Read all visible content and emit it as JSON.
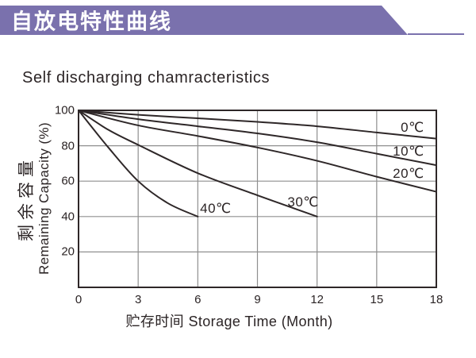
{
  "header": {
    "title": "自放电特性曲线",
    "accent_color": "#7a71ad"
  },
  "page": {
    "subtitle": "Self discharging chamracteristics"
  },
  "chart_data": {
    "type": "line",
    "title": "Self discharging chamracteristics",
    "xlabel": "贮存时间 Storage Time (Month)",
    "ylabel_cn": "剩余容量",
    "ylabel_en": "Remaining Capacity (%)",
    "xlim": [
      0,
      18
    ],
    "ylim": [
      0,
      100
    ],
    "x_ticks": [
      0,
      3,
      6,
      9,
      12,
      15,
      18
    ],
    "y_ticks": [
      20,
      40,
      60,
      80,
      100
    ],
    "grid": true,
    "legend_position": "inline-labels",
    "line_color": "#2e2728",
    "grid_color": "#8f8f8f",
    "border_color": "#2e2728",
    "series": [
      {
        "name": "0C",
        "label": "0℃",
        "label_pos": [
          16.8,
          90
        ],
        "points": [
          [
            0,
            100
          ],
          [
            3,
            97.5
          ],
          [
            6,
            95.5
          ],
          [
            9,
            93.5
          ],
          [
            12,
            91
          ],
          [
            15,
            87.5
          ],
          [
            18,
            84
          ]
        ]
      },
      {
        "name": "10C",
        "label": "10℃",
        "label_pos": [
          16.6,
          76.5
        ],
        "points": [
          [
            0,
            100
          ],
          [
            3,
            95
          ],
          [
            6,
            91
          ],
          [
            9,
            87
          ],
          [
            12,
            82
          ],
          [
            15,
            75.5
          ],
          [
            18,
            69
          ]
        ]
      },
      {
        "name": "20C",
        "label": "20℃",
        "label_pos": [
          16.6,
          64
        ],
        "points": [
          [
            0,
            100
          ],
          [
            3,
            91.5
          ],
          [
            6,
            85.5
          ],
          [
            9,
            79
          ],
          [
            12,
            71.5
          ],
          [
            15,
            62.5
          ],
          [
            18,
            54
          ]
        ]
      },
      {
        "name": "30C",
        "label": "30℃",
        "label_pos": [
          11.3,
          48
        ],
        "points": [
          [
            0,
            100
          ],
          [
            1.5,
            89
          ],
          [
            3,
            80.5
          ],
          [
            6,
            64.5
          ],
          [
            9,
            52
          ],
          [
            12,
            40
          ]
        ]
      },
      {
        "name": "40C",
        "label": "40℃",
        "label_pos": [
          6.9,
          44.5
        ],
        "points": [
          [
            0,
            100
          ],
          [
            1.5,
            79
          ],
          [
            3,
            60
          ],
          [
            4.5,
            47.5
          ],
          [
            6,
            40
          ]
        ]
      }
    ]
  }
}
